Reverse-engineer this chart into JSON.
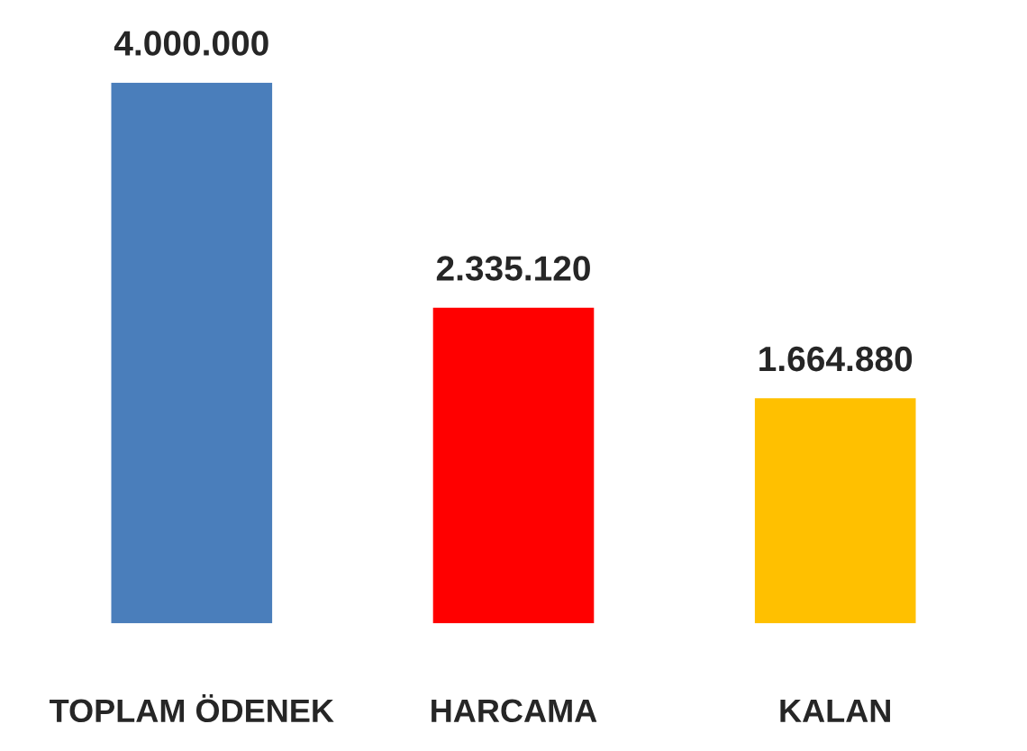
{
  "chart_data": {
    "type": "bar",
    "categories": [
      "TOPLAM ÖDENEK",
      "HARCAMA",
      "KALAN"
    ],
    "values": [
      4000000,
      2335120,
      1664880
    ],
    "colors": [
      "#4a7ebb",
      "#ff0000",
      "#ffc000"
    ],
    "value_labels": [
      "4.000.000",
      "2.335.120",
      "1.664.880"
    ],
    "grid": false,
    "legend": false
  }
}
